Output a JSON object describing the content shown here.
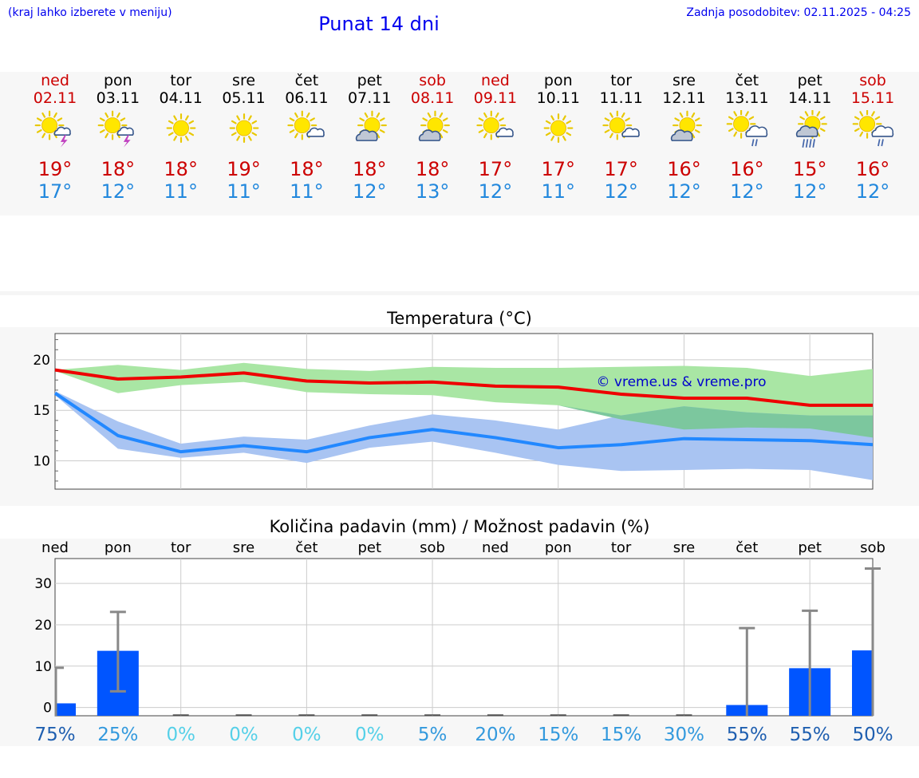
{
  "header": {
    "hint": "(kraj lahko izberete v meniju)",
    "title": "Punat 14 dni",
    "updated": "Zadnja posodobitev: 02.11.2025 - 04:25"
  },
  "days": [
    {
      "name": "ned",
      "date": "02.11",
      "weekend": true,
      "icon": "sun-cloud-thunder-icon",
      "tmax": "19°",
      "tmin": "17°"
    },
    {
      "name": "pon",
      "date": "03.11",
      "weekend": false,
      "icon": "sun-cloud-thunder-icon",
      "tmax": "18°",
      "tmin": "12°"
    },
    {
      "name": "tor",
      "date": "04.11",
      "weekend": false,
      "icon": "sun-icon",
      "tmax": "18°",
      "tmin": "11°"
    },
    {
      "name": "sre",
      "date": "05.11",
      "weekend": false,
      "icon": "sun-icon",
      "tmax": "19°",
      "tmin": "11°"
    },
    {
      "name": "čet",
      "date": "06.11",
      "weekend": false,
      "icon": "sun-small-cloud-icon",
      "tmax": "18°",
      "tmin": "11°"
    },
    {
      "name": "pet",
      "date": "07.11",
      "weekend": false,
      "icon": "sun-cloud-icon",
      "tmax": "18°",
      "tmin": "12°"
    },
    {
      "name": "sob",
      "date": "08.11",
      "weekend": true,
      "icon": "sun-cloud-icon",
      "tmax": "18°",
      "tmin": "13°"
    },
    {
      "name": "ned",
      "date": "09.11",
      "weekend": true,
      "icon": "sun-small-cloud-icon",
      "tmax": "17°",
      "tmin": "12°"
    },
    {
      "name": "pon",
      "date": "10.11",
      "weekend": false,
      "icon": "sun-icon",
      "tmax": "17°",
      "tmin": "11°"
    },
    {
      "name": "tor",
      "date": "11.11",
      "weekend": false,
      "icon": "sun-small-cloud-icon",
      "tmax": "17°",
      "tmin": "12°"
    },
    {
      "name": "sre",
      "date": "12.11",
      "weekend": false,
      "icon": "sun-cloud-icon",
      "tmax": "16°",
      "tmin": "12°"
    },
    {
      "name": "čet",
      "date": "13.11",
      "weekend": false,
      "icon": "sun-cloud-light-rain-icon",
      "tmax": "16°",
      "tmin": "12°"
    },
    {
      "name": "pet",
      "date": "14.11",
      "weekend": false,
      "icon": "sun-cloud-rain-icon",
      "tmax": "15°",
      "tmin": "12°"
    },
    {
      "name": "sob",
      "date": "15.11",
      "weekend": true,
      "icon": "sun-cloud-light-rain-icon",
      "tmax": "16°",
      "tmin": "12°"
    }
  ],
  "colors": {
    "max_line": "#ee0000",
    "max_band": "#a9e6a4",
    "min_line": "#2288ff",
    "min_band": "#a9c4f2",
    "overlap_band": "#7cc79e",
    "bar": "#0055ff",
    "error": "#888888",
    "weekend": "#cc0000"
  },
  "chart_data": [
    {
      "type": "line",
      "title": "Temperatura (°C)",
      "ylim": [
        7.2,
        22.6
      ],
      "yticks": [
        10,
        15,
        20
      ],
      "x": [
        0,
        1,
        2,
        3,
        4,
        5,
        6,
        7,
        8,
        9,
        10,
        11,
        12,
        13
      ],
      "watermark": "© vreme.us & vreme.pro",
      "series": [
        {
          "name": "max",
          "values": [
            19.0,
            18.1,
            18.3,
            18.7,
            17.9,
            17.7,
            17.8,
            17.4,
            17.3,
            16.6,
            16.2,
            16.2,
            15.5,
            15.5
          ]
        },
        {
          "name": "max_high",
          "values": [
            19.0,
            19.5,
            19.0,
            19.7,
            19.1,
            18.9,
            19.3,
            19.2,
            19.2,
            19.3,
            19.4,
            19.2,
            18.4,
            19.1
          ]
        },
        {
          "name": "max_low",
          "values": [
            18.9,
            16.7,
            17.5,
            17.8,
            16.8,
            16.6,
            16.5,
            15.8,
            15.5,
            14.1,
            13.1,
            13.3,
            13.2,
            12.3
          ]
        },
        {
          "name": "min",
          "values": [
            16.7,
            12.5,
            10.9,
            11.5,
            10.9,
            12.3,
            13.1,
            12.3,
            11.3,
            11.6,
            12.2,
            12.1,
            12.0,
            11.6
          ]
        },
        {
          "name": "min_high",
          "values": [
            16.9,
            13.9,
            11.7,
            12.4,
            12.1,
            13.5,
            14.6,
            14.0,
            13.1,
            14.5,
            15.4,
            14.8,
            14.5,
            14.5
          ]
        },
        {
          "name": "min_low",
          "values": [
            16.5,
            11.2,
            10.3,
            10.8,
            9.8,
            11.3,
            11.9,
            10.8,
            9.6,
            9.0,
            9.1,
            9.2,
            9.1,
            8.1
          ]
        }
      ]
    },
    {
      "type": "bar",
      "title": "Količina padavin (mm) / Možnost padavin (%)",
      "categories": [
        "ned",
        "pon",
        "tor",
        "sre",
        "čet",
        "pet",
        "sob",
        "ned",
        "pon",
        "tor",
        "sre",
        "čet",
        "pet",
        "sob"
      ],
      "ylim": [
        -2,
        36
      ],
      "yticks": [
        0,
        10,
        20,
        30
      ],
      "values": [
        1.0,
        13.7,
        0,
        0,
        0,
        0,
        0,
        0,
        0,
        0,
        0,
        0.6,
        9.5,
        13.8
      ],
      "error_high": [
        9.6,
        23.1,
        0,
        0,
        0,
        0,
        0,
        0,
        0,
        0,
        0,
        19.2,
        23.4,
        33.6
      ],
      "error_low": [
        0,
        3.9,
        0,
        0,
        0,
        0,
        0,
        0,
        0,
        0,
        0,
        0,
        0,
        0
      ],
      "probability": [
        "75%",
        "25%",
        "0%",
        "0%",
        "0%",
        "0%",
        "5%",
        "20%",
        "15%",
        "15%",
        "30%",
        "55%",
        "55%",
        "50%"
      ],
      "probability_values": [
        75,
        25,
        0,
        0,
        0,
        0,
        5,
        20,
        15,
        15,
        30,
        55,
        55,
        50
      ]
    }
  ]
}
